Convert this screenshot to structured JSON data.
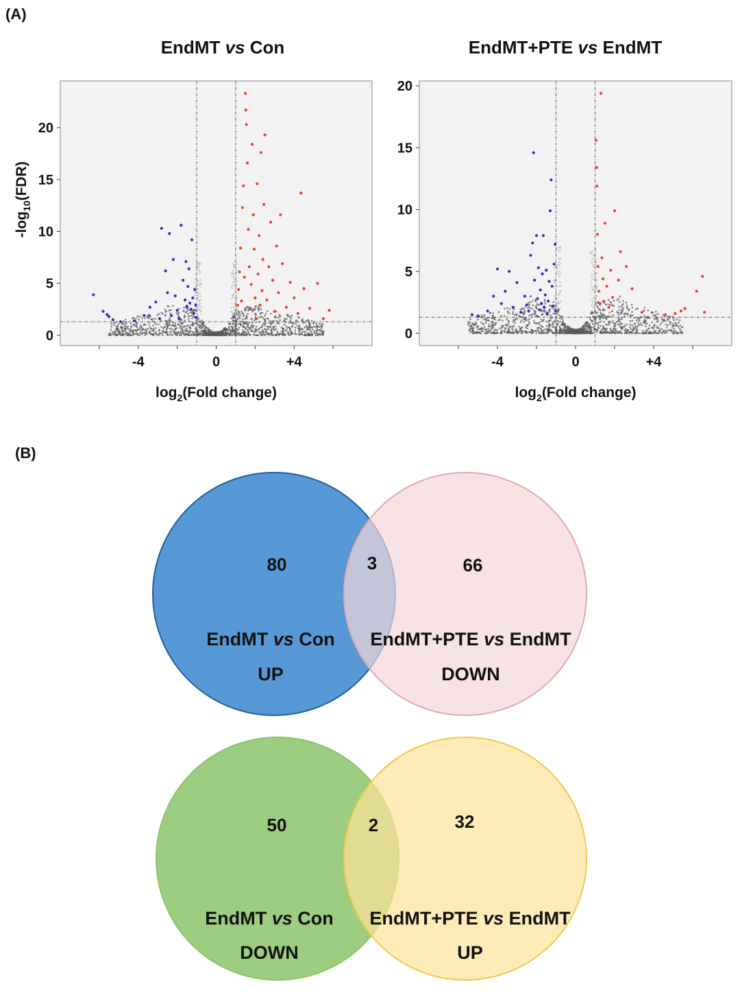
{
  "panel_a_label": "(A)",
  "panel_b_label": "(B)",
  "chart_data": [
    {
      "type": "scatter",
      "subtype": "volcano",
      "title": {
        "part1": "EndMT ",
        "italic": "vs",
        "part2": " Con"
      },
      "xlabel": "log2(Fold change)",
      "ylabel": "-log10(FDR)",
      "xlim": [
        -8,
        8
      ],
      "ylim": [
        -1,
        24.5
      ],
      "xticks": [
        {
          "value": -4,
          "label": "-4"
        },
        {
          "value": 0,
          "label": "0"
        },
        {
          "value": 4,
          "label": "+4"
        }
      ],
      "yticks": [
        {
          "value": 0,
          "label": "0"
        },
        {
          "value": 5,
          "label": "5"
        },
        {
          "value": 10,
          "label": "10"
        },
        {
          "value": 15,
          "label": "15"
        },
        {
          "value": 20,
          "label": "20"
        }
      ],
      "fc_threshold": [
        -1,
        1
      ],
      "fdr_threshold": 1.3,
      "colors": {
        "up": "#e8402a",
        "down": "#2f2fb8",
        "ns": "#5a5a5a",
        "bg": "#f2f2f2"
      },
      "ns_spread": 5.5,
      "ns_count": 1400,
      "seed": 11,
      "down_points": [
        [
          -6.3,
          3.9
        ],
        [
          -5.8,
          2.3
        ],
        [
          -5.6,
          2.0
        ],
        [
          -5.5,
          1.8
        ],
        [
          -5.3,
          1.5
        ],
        [
          -4.9,
          1.3
        ],
        [
          -4.2,
          1.4
        ],
        [
          -3.7,
          1.9
        ],
        [
          -3.4,
          2.7
        ],
        [
          -3.1,
          3.2
        ],
        [
          -2.9,
          1.6
        ],
        [
          -2.8,
          10.3
        ],
        [
          -2.6,
          6.2
        ],
        [
          -2.5,
          4.1
        ],
        [
          -2.4,
          9.8
        ],
        [
          -2.3,
          1.9
        ],
        [
          -2.2,
          7.3
        ],
        [
          -2.1,
          3.8
        ],
        [
          -2.0,
          2.4
        ],
        [
          -1.9,
          1.6
        ],
        [
          -1.8,
          10.6
        ],
        [
          -1.7,
          5.3
        ],
        [
          -1.6,
          3.4
        ],
        [
          -1.55,
          7.1
        ],
        [
          -1.5,
          2.8
        ],
        [
          -1.45,
          4.7
        ],
        [
          -1.4,
          6.4
        ],
        [
          -1.35,
          3.1
        ],
        [
          -1.3,
          2.5
        ],
        [
          -1.25,
          9.2
        ],
        [
          -1.2,
          3.6
        ],
        [
          -1.15,
          2.1
        ],
        [
          -1.1,
          4.4
        ],
        [
          -1.05,
          2.9
        ],
        [
          -1.02,
          1.7
        ]
      ],
      "up_points": [
        [
          1.1,
          2.9
        ],
        [
          1.15,
          4.4
        ],
        [
          1.2,
          6.1
        ],
        [
          1.25,
          8.4
        ],
        [
          1.3,
          3.3
        ],
        [
          1.35,
          12.3
        ],
        [
          1.4,
          14.4
        ],
        [
          1.45,
          5.6
        ],
        [
          1.5,
          23.3
        ],
        [
          1.52,
          21.7
        ],
        [
          1.55,
          20.3
        ],
        [
          1.6,
          16.6
        ],
        [
          1.65,
          10.2
        ],
        [
          1.7,
          6.6
        ],
        [
          1.75,
          2.6
        ],
        [
          1.8,
          4.9
        ],
        [
          1.85,
          18.4
        ],
        [
          1.9,
          11.6
        ],
        [
          1.95,
          8.3
        ],
        [
          2.0,
          3.6
        ],
        [
          2.05,
          1.6
        ],
        [
          2.1,
          14.6
        ],
        [
          2.15,
          5.9
        ],
        [
          2.2,
          9.6
        ],
        [
          2.25,
          2.9
        ],
        [
          2.3,
          17.6
        ],
        [
          2.35,
          4.3
        ],
        [
          2.4,
          7.3
        ],
        [
          2.45,
          12.6
        ],
        [
          2.5,
          19.3
        ],
        [
          2.6,
          3.4
        ],
        [
          2.7,
          6.6
        ],
        [
          2.8,
          10.9
        ],
        [
          2.9,
          5.3
        ],
        [
          3.0,
          2.3
        ],
        [
          3.1,
          8.6
        ],
        [
          3.2,
          4.1
        ],
        [
          3.3,
          11.6
        ],
        [
          3.4,
          6.9
        ],
        [
          3.6,
          2.7
        ],
        [
          3.8,
          5.1
        ],
        [
          4.0,
          3.6
        ],
        [
          4.2,
          2.1
        ],
        [
          4.35,
          13.7
        ],
        [
          4.5,
          4.5
        ],
        [
          4.8,
          2.6
        ],
        [
          5.2,
          5.0
        ],
        [
          5.5,
          1.6
        ],
        [
          5.8,
          2.4
        ]
      ]
    },
    {
      "type": "scatter",
      "subtype": "volcano",
      "title": {
        "part1": "EndMT+PTE ",
        "italic": "vs",
        "part2": " EndMT"
      },
      "xlabel": "log2(Fold change)",
      "ylabel": "",
      "xlim": [
        -8,
        8
      ],
      "ylim": [
        -1,
        20.4
      ],
      "xticks": [
        {
          "value": -4,
          "label": "-4"
        },
        {
          "value": 0,
          "label": "0"
        },
        {
          "value": 4,
          "label": "+4"
        }
      ],
      "yticks": [
        {
          "value": 0,
          "label": "0"
        },
        {
          "value": 5,
          "label": "5"
        },
        {
          "value": 10,
          "label": "10"
        },
        {
          "value": 15,
          "label": "15"
        },
        {
          "value": 20,
          "label": "20"
        }
      ],
      "fc_threshold": [
        -1,
        1
      ],
      "fdr_threshold": 1.3,
      "colors": {
        "up": "#e8402a",
        "down": "#2f2fb8",
        "ns": "#5a5a5a",
        "bg": "#f2f2f2"
      },
      "ns_spread": 5.5,
      "ns_count": 1400,
      "seed": 23,
      "down_points": [
        [
          -5.3,
          1.5
        ],
        [
          -5.0,
          1.4
        ],
        [
          -4.5,
          1.8
        ],
        [
          -4.2,
          3.0
        ],
        [
          -4.0,
          5.2
        ],
        [
          -3.8,
          2.4
        ],
        [
          -3.6,
          3.4
        ],
        [
          -3.4,
          5.0
        ],
        [
          -3.2,
          2.1
        ],
        [
          -3.0,
          4.1
        ],
        [
          -2.8,
          1.7
        ],
        [
          -2.6,
          3.0
        ],
        [
          -2.5,
          2.3
        ],
        [
          -2.4,
          1.8
        ],
        [
          -2.3,
          6.3
        ],
        [
          -2.2,
          7.3
        ],
        [
          -2.15,
          14.6
        ],
        [
          -2.1,
          4.3
        ],
        [
          -2.0,
          7.9
        ],
        [
          -1.95,
          2.8
        ],
        [
          -1.9,
          5.3
        ],
        [
          -1.85,
          1.9
        ],
        [
          -1.8,
          3.5
        ],
        [
          -1.75,
          2.4
        ],
        [
          -1.7,
          4.8
        ],
        [
          -1.65,
          7.9
        ],
        [
          -1.6,
          2.1
        ],
        [
          -1.55,
          3.1
        ],
        [
          -1.5,
          5.1
        ],
        [
          -1.45,
          1.6
        ],
        [
          -1.4,
          2.6
        ],
        [
          -1.35,
          4.2
        ],
        [
          -1.3,
          9.9
        ],
        [
          -1.25,
          12.4
        ],
        [
          -1.2,
          3.8
        ],
        [
          -1.15,
          2.2
        ],
        [
          -1.1,
          5.6
        ],
        [
          -1.05,
          7.2
        ],
        [
          -1.02,
          1.8
        ]
      ],
      "up_points": [
        [
          1.05,
          15.6
        ],
        [
          1.08,
          13.4
        ],
        [
          1.1,
          11.9
        ],
        [
          1.12,
          8.0
        ],
        [
          1.15,
          5.4
        ],
        [
          1.2,
          3.4
        ],
        [
          1.25,
          2.4
        ],
        [
          1.3,
          19.4
        ],
        [
          1.35,
          6.1
        ],
        [
          1.4,
          4.4
        ],
        [
          1.45,
          2.6
        ],
        [
          1.5,
          8.9
        ],
        [
          1.6,
          3.8
        ],
        [
          1.7,
          2.1
        ],
        [
          1.8,
          5.1
        ],
        [
          1.9,
          2.9
        ],
        [
          2.0,
          9.9
        ],
        [
          2.2,
          4.3
        ],
        [
          2.3,
          6.6
        ],
        [
          2.6,
          5.4
        ],
        [
          2.9,
          3.6
        ],
        [
          3.4,
          1.7
        ],
        [
          4.6,
          1.5
        ],
        [
          5.1,
          1.6
        ],
        [
          5.4,
          1.8
        ],
        [
          5.6,
          2.0
        ],
        [
          6.2,
          3.4
        ],
        [
          6.5,
          4.6
        ],
        [
          6.6,
          1.7
        ]
      ]
    }
  ],
  "venn": [
    {
      "left": {
        "count": "80",
        "label_line1": {
          "part1": "EndMT ",
          "italic": "vs",
          "part2": " Con"
        },
        "label_line2": "UP",
        "fill": "#3a87cf",
        "stroke": "#1f5f98"
      },
      "overlap": "3",
      "right": {
        "count": "66",
        "label_line1": {
          "part1": "EndMT+PTE ",
          "italic": "vs",
          "part2": " EndMT"
        },
        "label_line2": "DOWN",
        "fill": "#f3d7da",
        "stroke": "#e0a8b0"
      }
    },
    {
      "left": {
        "count": "50",
        "label_line1": {
          "part1": "EndMT ",
          "italic": "vs",
          "part2": " Con"
        },
        "label_line2": "DOWN",
        "fill": "#8cc46a",
        "stroke": "#8cc46a"
      },
      "overlap": "2",
      "right": {
        "count": "32",
        "label_line1": {
          "part1": "EndMT+PTE ",
          "italic": "vs",
          "part2": " EndMT"
        },
        "label_line2": "UP",
        "fill": "#fde39a",
        "stroke": "#f0c94a"
      }
    }
  ]
}
